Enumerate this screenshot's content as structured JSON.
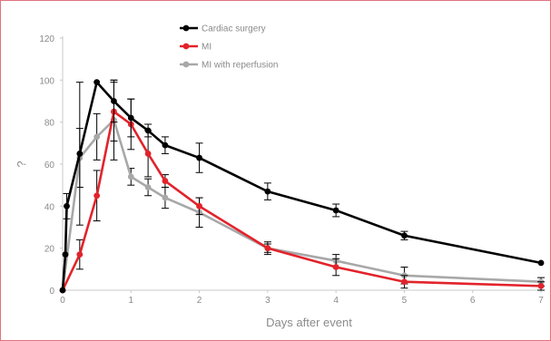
{
  "chart_data": {
    "type": "line",
    "title": "",
    "xlabel": "Days after event",
    "ylabel": "?",
    "xlim": [
      0,
      7
    ],
    "ylim": [
      0,
      120
    ],
    "x_ticks": [
      0,
      1,
      2,
      3,
      4,
      5,
      6,
      7
    ],
    "y_ticks": [
      0,
      20,
      40,
      60,
      80,
      100,
      120
    ],
    "grid": false,
    "legend_position": "top-center",
    "series": [
      {
        "name": "Cardiac surgery",
        "color": "#000000",
        "points": [
          {
            "x": 0,
            "y": 0,
            "err": 0
          },
          {
            "x": 0.04,
            "y": 17,
            "err": 0
          },
          {
            "x": 0.06,
            "y": 40,
            "err": 6
          },
          {
            "x": 0.25,
            "y": 65,
            "err": 34
          },
          {
            "x": 0.5,
            "y": 99,
            "err": 0
          },
          {
            "x": 0.75,
            "y": 90,
            "err": 10
          },
          {
            "x": 1,
            "y": 82,
            "err": 9
          },
          {
            "x": 1.25,
            "y": 76,
            "err": 3
          },
          {
            "x": 1.5,
            "y": 69,
            "err": 4
          },
          {
            "x": 2,
            "y": 63,
            "err": 7
          },
          {
            "x": 3,
            "y": 47,
            "err": 4
          },
          {
            "x": 4,
            "y": 38,
            "err": 3
          },
          {
            "x": 5,
            "y": 26,
            "err": 2
          },
          {
            "x": 7,
            "y": 13,
            "err": 0
          }
        ]
      },
      {
        "name": "MI",
        "color": "#e2232b",
        "points": [
          {
            "x": 0,
            "y": 0,
            "err": 0
          },
          {
            "x": 0.25,
            "y": 17,
            "err": 7
          },
          {
            "x": 0.5,
            "y": 45,
            "err": 12
          },
          {
            "x": 0.75,
            "y": 85,
            "err": 14
          },
          {
            "x": 1,
            "y": 79,
            "err": 12
          },
          {
            "x": 1.25,
            "y": 65,
            "err": 11
          },
          {
            "x": 1.5,
            "y": 52,
            "err": 3
          },
          {
            "x": 2,
            "y": 40,
            "err": 4
          },
          {
            "x": 3,
            "y": 20,
            "err": 3
          },
          {
            "x": 4,
            "y": 11,
            "err": 4
          },
          {
            "x": 5,
            "y": 4,
            "err": 3
          },
          {
            "x": 7,
            "y": 2,
            "err": 2
          }
        ]
      },
      {
        "name": "MI with reperfusion",
        "color": "#a8a8a8",
        "points": [
          {
            "x": 0,
            "y": 0,
            "err": 0
          },
          {
            "x": 0.25,
            "y": 63,
            "err": 14
          },
          {
            "x": 0.5,
            "y": 73,
            "err": 11
          },
          {
            "x": 0.75,
            "y": 81,
            "err": 19
          },
          {
            "x": 1,
            "y": 54,
            "err": 4
          },
          {
            "x": 1.25,
            "y": 49,
            "err": 4
          },
          {
            "x": 1.5,
            "y": 44,
            "err": 5
          },
          {
            "x": 2,
            "y": 37,
            "err": 7
          },
          {
            "x": 3,
            "y": 20,
            "err": 2
          },
          {
            "x": 4,
            "y": 14,
            "err": 3
          },
          {
            "x": 5,
            "y": 7,
            "err": 4
          },
          {
            "x": 7,
            "y": 4,
            "err": 2
          }
        ]
      }
    ]
  }
}
